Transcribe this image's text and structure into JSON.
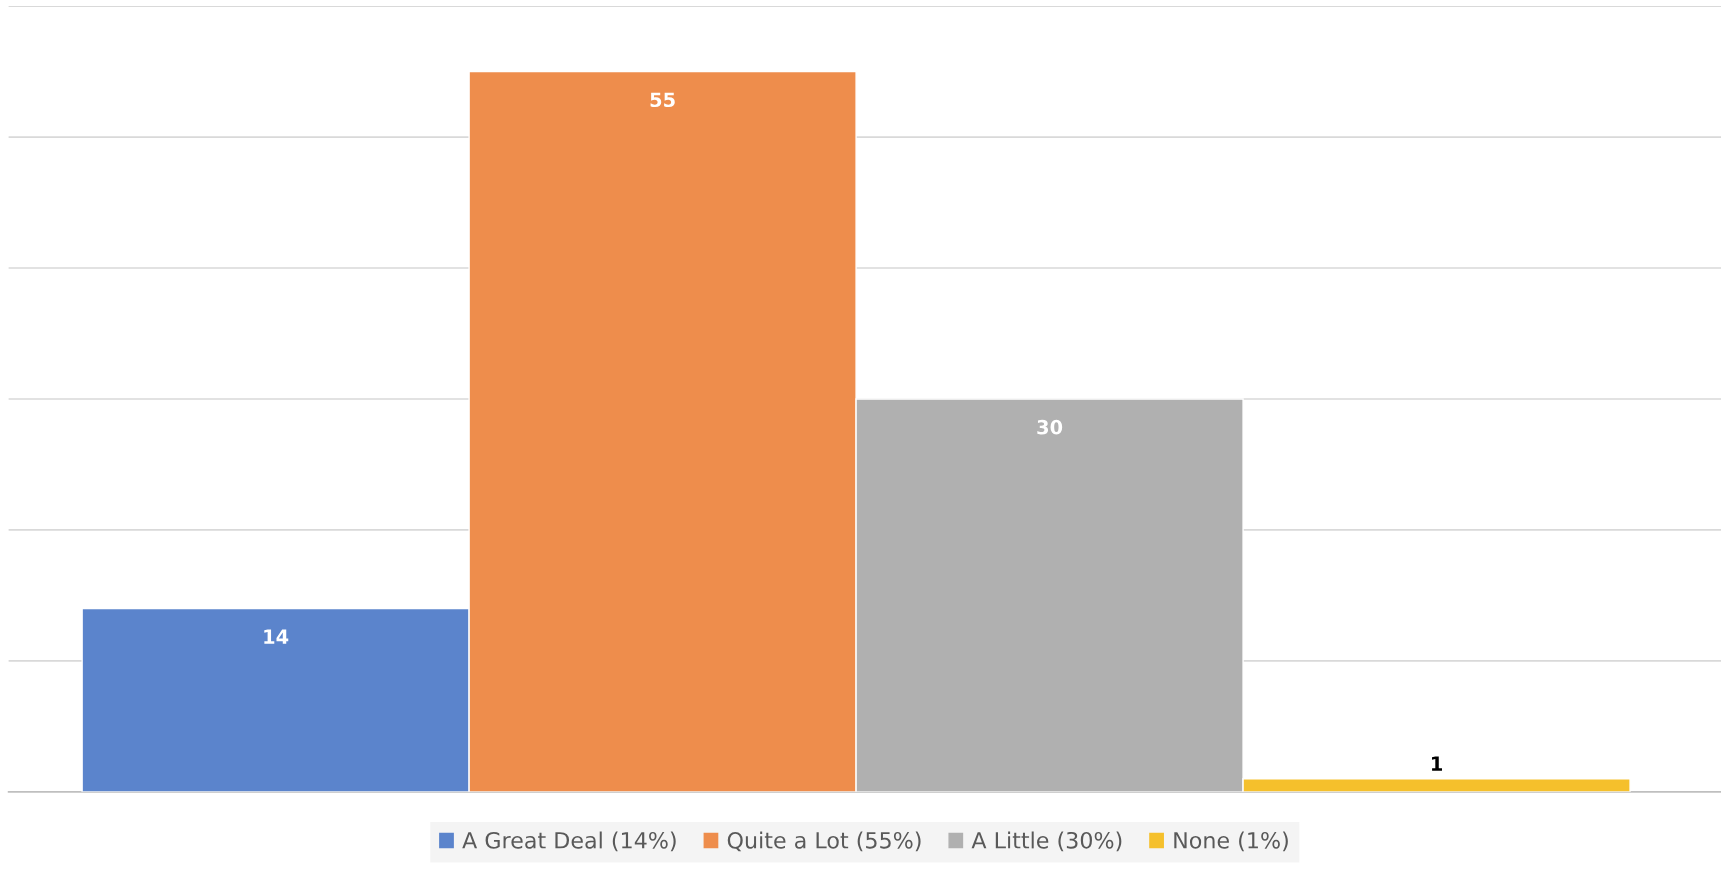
{
  "chart_data": {
    "type": "bar",
    "categories": [
      null
    ],
    "series": [
      {
        "name": "A Great Deal (14%)",
        "color": "#5b84cc",
        "values": [
          14
        ]
      },
      {
        "name": "Quite a Lot (55%)",
        "color": "#ee8d4c",
        "values": [
          55
        ]
      },
      {
        "name": "A Little (30%)",
        "color": "#b0b0b0",
        "values": [
          30
        ]
      },
      {
        "name": "None (1%)",
        "color": "#f5c02c",
        "values": [
          1
        ]
      }
    ],
    "ylim": [
      0,
      60
    ],
    "yticks": [
      {
        "value": 0,
        "label": null
      },
      {
        "value": 10,
        "label": null
      },
      {
        "value": 20,
        "label": null
      },
      {
        "value": 30,
        "label": null
      },
      {
        "value": 40,
        "label": null
      },
      {
        "value": 50,
        "label": null
      },
      {
        "value": 60,
        "label": null
      }
    ],
    "grid": "y",
    "legend": "bottom",
    "data_labels": true
  }
}
